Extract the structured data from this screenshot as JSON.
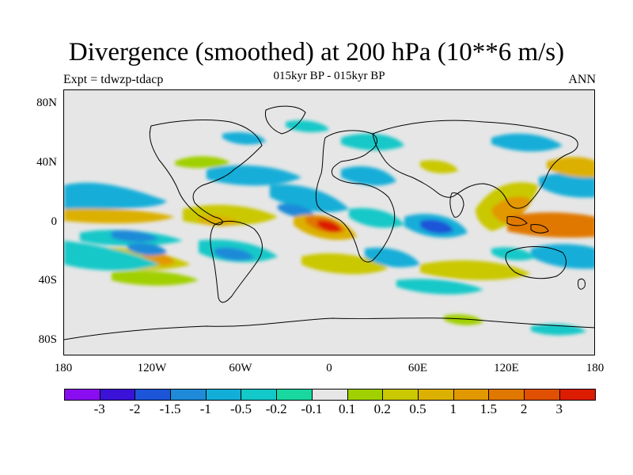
{
  "title": "Divergence (smoothed) at 200 hPa (10**6 m/s)",
  "subtitle_center": "015kyr BP - 015kyr BP",
  "subtitle_left": "Expt = tdwzp-tdacp",
  "subtitle_right": "ANN",
  "lat_labels": [
    "80N",
    "40N",
    "0",
    "40S",
    "80S"
  ],
  "lon_labels": [
    "180",
    "120W",
    "60W",
    "0",
    "60E",
    "120E",
    "180"
  ],
  "colorbar": {
    "labels": [
      "-3",
      "-2",
      "-1.5",
      "-1",
      "-0.5",
      "-0.2",
      "-0.1",
      "0.1",
      "0.2",
      "0.5",
      "1",
      "1.5",
      "2",
      "3"
    ],
    "colors": [
      "#8a0cf0",
      "#3a12d8",
      "#1c55d8",
      "#1e8ad8",
      "#12aed8",
      "#12c8c8",
      "#18d8a0",
      "#e6e6e6",
      "#a0d000",
      "#cac800",
      "#dcb000",
      "#e29800",
      "#e07800",
      "#e05000",
      "#dc1c00"
    ]
  }
}
